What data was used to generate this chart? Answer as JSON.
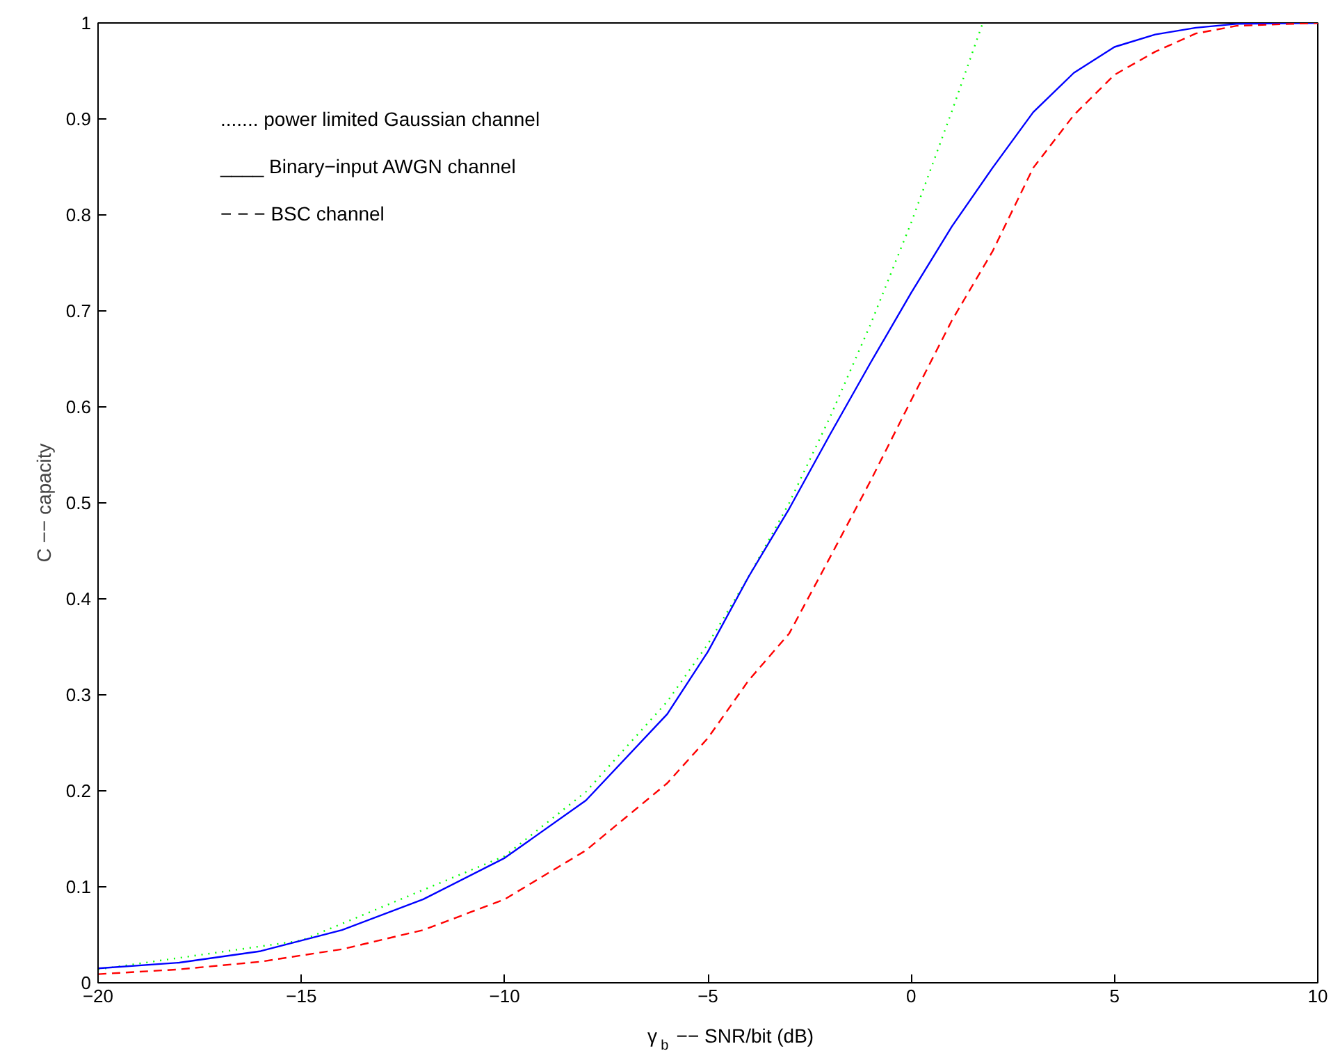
{
  "chart_data": {
    "type": "line",
    "xlabel": "γ$_{b}$ −− SNR/bit (dB)",
    "ylabel": "C −− capacity",
    "xlim": [
      -20,
      10
    ],
    "ylim": [
      0,
      1
    ],
    "xticks": [
      {
        "value": -20,
        "label": "−20"
      },
      {
        "value": -15,
        "label": "−15"
      },
      {
        "value": -10,
        "label": "−10"
      },
      {
        "value": -5,
        "label": "−5"
      },
      0,
      5,
      10
    ],
    "yticks": [
      0,
      0.1,
      0.2,
      0.3,
      0.4,
      0.5,
      0.6,
      0.7,
      0.8,
      0.9,
      1
    ],
    "grid": false,
    "marker": "none",
    "annotations": [
      "....... power limited Gaussian channel",
      "____  Binary−input AWGN channel",
      "− − −  BSC channel"
    ],
    "series": [
      {
        "color": "#00ff00",
        "line_style": "dotted",
        "x": [
          -20,
          -15,
          -10,
          -8,
          -6,
          -5,
          -4,
          -3,
          -2,
          -1,
          0,
          1,
          1.76
        ],
        "values": [
          0.014,
          0.044,
          0.132,
          0.199,
          0.293,
          0.353,
          0.423,
          0.5,
          0.589,
          0.686,
          0.792,
          0.908,
          1.0
        ]
      },
      {
        "color": "#0000ff",
        "line_style": "solid",
        "x": [
          -20,
          -18,
          -16,
          -14,
          -12,
          -10,
          -8,
          -6,
          -5,
          -4,
          -3,
          -2,
          -1,
          0,
          1,
          2,
          3,
          4,
          5,
          6,
          7,
          8,
          10
        ],
        "values": [
          0.015,
          0.021,
          0.033,
          0.055,
          0.087,
          0.13,
          0.19,
          0.28,
          0.345,
          0.423,
          0.494,
          0.571,
          0.646,
          0.719,
          0.788,
          0.849,
          0.907,
          0.948,
          0.975,
          0.988,
          0.995,
          0.999,
          1.0
        ]
      },
      {
        "color": "#ff0000",
        "line_style": "dashed",
        "x": [
          -20,
          -18,
          -16,
          -14,
          -12,
          -10,
          -8,
          -6,
          -5,
          -4,
          -3,
          -2,
          -1,
          0,
          1,
          2,
          3,
          4,
          5,
          6,
          7,
          8,
          10
        ],
        "values": [
          0.009,
          0.014,
          0.022,
          0.035,
          0.055,
          0.087,
          0.138,
          0.208,
          0.255,
          0.315,
          0.364,
          0.443,
          0.523,
          0.607,
          0.69,
          0.762,
          0.849,
          0.904,
          0.946,
          0.97,
          0.989,
          0.997,
          1.0
        ]
      }
    ]
  }
}
